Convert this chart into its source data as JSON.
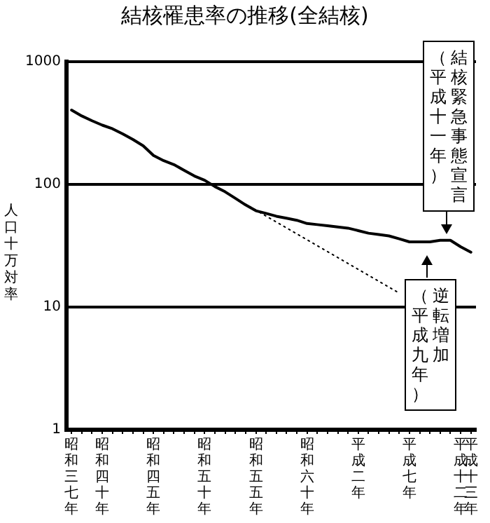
{
  "chart_data": {
    "type": "line",
    "title": "結核罹患率の推移(全結核)",
    "ylabel": "人口十万対率",
    "categories": [
      "昭和三七年",
      null,
      null,
      "昭和四十年",
      null,
      null,
      null,
      null,
      "昭和四五年",
      null,
      null,
      null,
      null,
      "昭和五十年",
      null,
      null,
      null,
      null,
      "昭和五五年",
      null,
      null,
      null,
      null,
      "昭和六十年",
      null,
      null,
      null,
      null,
      "平成二年",
      null,
      null,
      null,
      null,
      "平成七年",
      null,
      null,
      null,
      null,
      "平成十二年",
      "平成十三年"
    ],
    "series": [
      {
        "color": "#000000",
        "values": [
          403,
          361,
          330,
          304,
          284,
          258,
          232,
          206,
          172,
          156,
          145,
          130,
          117,
          108,
          96,
          87,
          77,
          68,
          61,
          58,
          55,
          53,
          51,
          48,
          47,
          46,
          45,
          44,
          42,
          40,
          39,
          38,
          36,
          34,
          34,
          34,
          35,
          35,
          31,
          28
        ]
      },
      {
        "type": "line",
        "line_style": "dotted",
        "color": "#000000",
        "values": [
          null,
          null,
          null,
          null,
          null,
          null,
          null,
          null,
          null,
          null,
          null,
          null,
          null,
          null,
          null,
          null,
          77,
          null,
          null,
          null,
          null,
          null,
          null,
          null,
          null,
          null,
          null,
          null,
          null,
          null,
          null,
          null,
          13,
          null,
          null,
          null,
          null,
          null,
          null,
          null
        ]
      }
    ],
    "ylim": [
      1,
      1000
    ],
    "yticks": [
      1,
      10,
      100,
      1000
    ],
    "log": true,
    "grid": "y",
    "marker": "none",
    "annotations": [
      "結核緊急事態宣言",
      "（平成十一年）",
      "逆転増加",
      "（平成九年）"
    ]
  }
}
